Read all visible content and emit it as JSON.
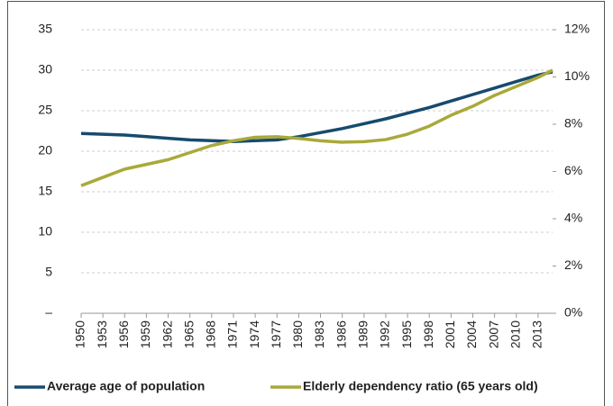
{
  "chart_data": {
    "type": "line",
    "x": [
      1950,
      1953,
      1956,
      1959,
      1962,
      1965,
      1968,
      1971,
      1974,
      1977,
      1980,
      1983,
      1986,
      1989,
      1992,
      1995,
      1998,
      2001,
      2004,
      2007,
      2010,
      2013,
      2015
    ],
    "xlim": [
      1950,
      2015
    ],
    "xticks": [
      1950,
      1953,
      1956,
      1959,
      1962,
      1965,
      1968,
      1971,
      1974,
      1977,
      1980,
      1983,
      1986,
      1989,
      1992,
      1995,
      1998,
      2001,
      2004,
      2007,
      2010,
      2013
    ],
    "ylim": [
      0,
      35
    ],
    "yticks": [
      {
        "value": 0,
        "label": "–"
      },
      5,
      10,
      15,
      20,
      25,
      30,
      35
    ],
    "y2lim": [
      0,
      12
    ],
    "y2ticks": [
      {
        "value": 0,
        "label": "0%"
      },
      {
        "value": 2,
        "label": "2%"
      },
      {
        "value": 4,
        "label": "4%"
      },
      {
        "value": 6,
        "label": "6%"
      },
      {
        "value": 8,
        "label": "8%"
      },
      {
        "value": 10,
        "label": "10%"
      },
      {
        "value": 12,
        "label": "12%"
      }
    ],
    "grid": true,
    "legend": "bottom",
    "series": [
      {
        "name": "Average age of population",
        "color": "#174a6e",
        "values": [
          22.2,
          22.1,
          22.0,
          21.8,
          21.6,
          21.4,
          21.3,
          21.2,
          21.3,
          21.4,
          21.8,
          22.3,
          22.8,
          23.4,
          24.0,
          24.7,
          25.4,
          26.2,
          27.0,
          27.8,
          28.6,
          29.4,
          29.8
        ]
      },
      {
        "name": "Elderly dependency ratio (65 years old)",
        "color": "#a9a93a",
        "axis": "y2",
        "values": [
          5.4,
          5.75,
          6.1,
          6.3,
          6.5,
          6.8,
          7.1,
          7.3,
          7.45,
          7.47,
          7.4,
          7.3,
          7.24,
          7.26,
          7.35,
          7.58,
          7.92,
          8.38,
          8.76,
          9.22,
          9.6,
          9.98,
          10.29
        ]
      }
    ]
  }
}
